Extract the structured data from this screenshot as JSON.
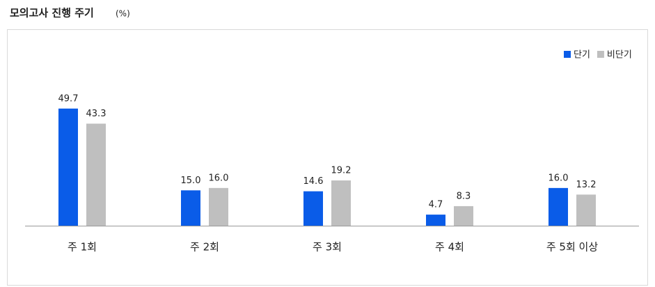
{
  "chart_data": {
    "type": "bar",
    "title": "모의고사 진행 주기",
    "unit": "(%)",
    "categories": [
      "주 1회",
      "주 2회",
      "주 3회",
      "주 4회",
      "주 5회 이상"
    ],
    "series": [
      {
        "name": "단기",
        "color": "#0a5ce8",
        "values": [
          49.7,
          15.0,
          14.6,
          4.7,
          16.0
        ],
        "value_labels": [
          "49.7",
          "15.0",
          "14.6",
          "4.7",
          "16.0"
        ]
      },
      {
        "name": "비단기",
        "color": "#bfbfbf",
        "values": [
          43.3,
          16.0,
          19.2,
          8.3,
          13.2
        ],
        "value_labels": [
          "43.3",
          "16.0",
          "19.2",
          "8.3",
          "13.2"
        ]
      }
    ],
    "ylim": [
      0,
      60
    ],
    "legend": "top-right"
  }
}
